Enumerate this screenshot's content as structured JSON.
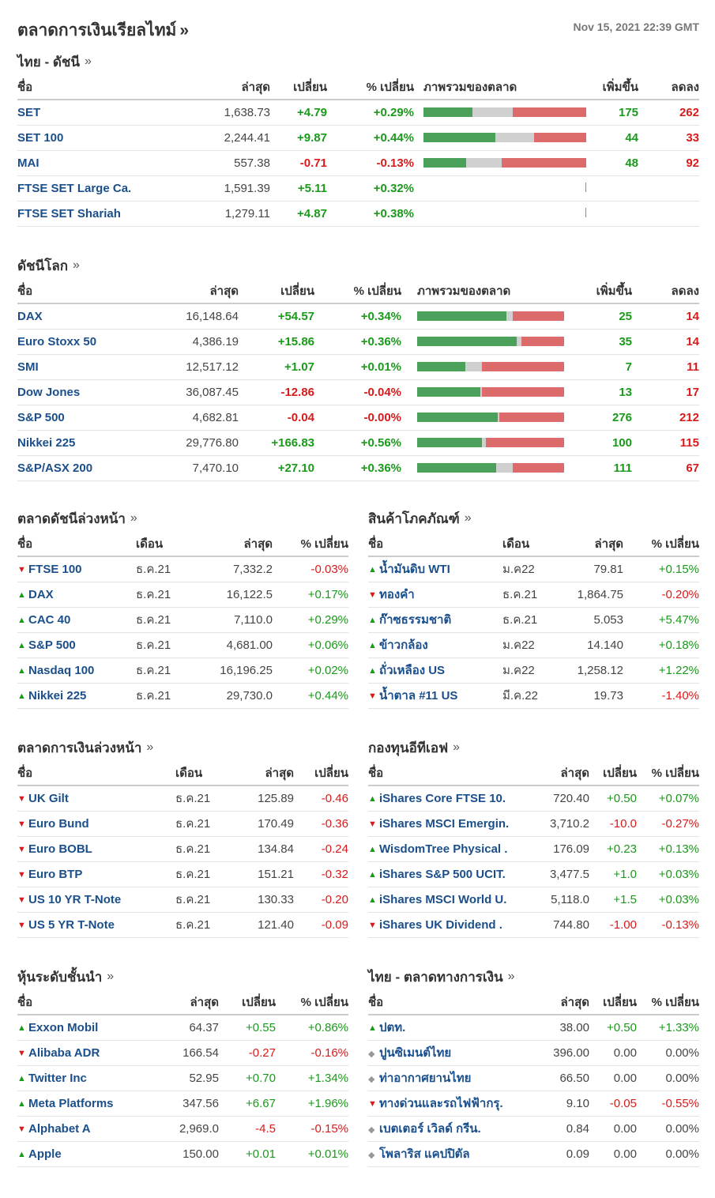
{
  "header": {
    "title": "ตลาดการเงินเรียลไทม์",
    "raquo": "»",
    "timestamp": "Nov 15, 2021 22:39 GMT"
  },
  "thai_indices": {
    "title": "ไทย - ดัชนี",
    "more": "»",
    "cols": [
      "ชื่อ",
      "ล่าสุด",
      "เปลี่ยน",
      "% เปลี่ยน",
      "ภาพรวมของตลาด",
      "เพิ่มขึ้น",
      "ลดลง"
    ],
    "rows": [
      {
        "name": "SET",
        "last": "1,638.73",
        "chg": "+4.79",
        "pct": "+0.29%",
        "up": "175",
        "down": "262",
        "dir": "pos",
        "mix": [
          0.3,
          0.25,
          0.45
        ]
      },
      {
        "name": "SET 100",
        "last": "2,244.41",
        "chg": "+9.87",
        "pct": "+0.44%",
        "up": "44",
        "down": "33",
        "dir": "pos",
        "mix": [
          0.44,
          0.24,
          0.32
        ]
      },
      {
        "name": "MAI",
        "last": "557.38",
        "chg": "-0.71",
        "pct": "-0.13%",
        "up": "48",
        "down": "92",
        "dir": "neg",
        "mix": [
          0.26,
          0.22,
          0.52
        ]
      },
      {
        "name": "FTSE SET Large Ca.",
        "last": "1,591.39",
        "chg": "+5.11",
        "pct": "+0.32%",
        "up": "",
        "down": "",
        "dir": "pos",
        "mix": null
      },
      {
        "name": "FTSE SET Shariah",
        "last": "1,279.11",
        "chg": "+4.87",
        "pct": "+0.38%",
        "up": "",
        "down": "",
        "dir": "pos",
        "mix": null
      }
    ]
  },
  "world_indices": {
    "title": "ดัชนีโลก",
    "more": "»",
    "cols": [
      "ชื่อ",
      "ล่าสุด",
      "เปลี่ยน",
      "% เปลี่ยน",
      "ภาพรวมของตลาด",
      "เพิ่มขึ้น",
      "ลดลง"
    ],
    "rows": [
      {
        "name": "DAX",
        "last": "16,148.64",
        "chg": "+54.57",
        "pct": "+0.34%",
        "up": "25",
        "down": "14",
        "dir": "pos",
        "mix": [
          0.61,
          0.04,
          0.35
        ]
      },
      {
        "name": "Euro Stoxx 50",
        "last": "4,386.19",
        "chg": "+15.86",
        "pct": "+0.36%",
        "up": "35",
        "down": "14",
        "dir": "pos",
        "mix": [
          0.68,
          0.03,
          0.29
        ]
      },
      {
        "name": "SMI",
        "last": "12,517.12",
        "chg": "+1.07",
        "pct": "+0.01%",
        "up": "7",
        "down": "11",
        "dir": "pos",
        "mix": [
          0.33,
          0.11,
          0.56
        ]
      },
      {
        "name": "Dow Jones",
        "last": "36,087.45",
        "chg": "-12.86",
        "pct": "-0.04%",
        "up": "13",
        "down": "17",
        "dir": "neg",
        "mix": [
          0.43,
          0.01,
          0.56
        ]
      },
      {
        "name": "S&P 500",
        "last": "4,682.81",
        "chg": "-0.04",
        "pct": "-0.00%",
        "up": "276",
        "down": "212",
        "dir": "neg",
        "mix": [
          0.55,
          0.01,
          0.44
        ]
      },
      {
        "name": "Nikkei 225",
        "last": "29,776.80",
        "chg": "+166.83",
        "pct": "+0.56%",
        "up": "100",
        "down": "115",
        "dir": "pos",
        "mix": [
          0.44,
          0.03,
          0.53
        ]
      },
      {
        "name": "S&P/ASX 200",
        "last": "7,470.10",
        "chg": "+27.10",
        "pct": "+0.36%",
        "up": "111",
        "down": "67",
        "dir": "pos",
        "mix": [
          0.54,
          0.11,
          0.35
        ]
      }
    ]
  },
  "index_futures": {
    "title": "ตลาดดัชนีล่วงหน้า",
    "more": "»",
    "cols": [
      "ชื่อ",
      "เดือน",
      "ล่าสุด",
      "% เปลี่ยน"
    ],
    "rows": [
      {
        "name": "FTSE 100",
        "month": "ธ.ค.21",
        "last": "7,332.2",
        "pct": "-0.03%",
        "dir": "neg"
      },
      {
        "name": "DAX",
        "month": "ธ.ค.21",
        "last": "16,122.5",
        "pct": "+0.17%",
        "dir": "pos"
      },
      {
        "name": "CAC 40",
        "month": "ธ.ค.21",
        "last": "7,110.0",
        "pct": "+0.29%",
        "dir": "pos"
      },
      {
        "name": "S&P 500",
        "month": "ธ.ค.21",
        "last": "4,681.00",
        "pct": "+0.06%",
        "dir": "pos"
      },
      {
        "name": "Nasdaq 100",
        "month": "ธ.ค.21",
        "last": "16,196.25",
        "pct": "+0.02%",
        "dir": "pos"
      },
      {
        "name": "Nikkei 225",
        "month": "ธ.ค.21",
        "last": "29,730.0",
        "pct": "+0.44%",
        "dir": "pos"
      }
    ]
  },
  "commodities": {
    "title": "สินค้าโภคภัณฑ์",
    "more": "»",
    "cols": [
      "ชื่อ",
      "เดือน",
      "ล่าสุด",
      "% เปลี่ยน"
    ],
    "rows": [
      {
        "name": "น้ำมันดิบ WTI",
        "month": "ม.ค22",
        "last": "79.81",
        "pct": "+0.15%",
        "dir": "pos"
      },
      {
        "name": "ทองคำ",
        "month": "ธ.ค.21",
        "last": "1,864.75",
        "pct": "-0.20%",
        "dir": "neg"
      },
      {
        "name": "ก๊าซธรรมชาติ",
        "month": "ธ.ค.21",
        "last": "5.053",
        "pct": "+5.47%",
        "dir": "pos"
      },
      {
        "name": "ข้าวกล้อง",
        "month": "ม.ค22",
        "last": "14.140",
        "pct": "+0.18%",
        "dir": "pos"
      },
      {
        "name": "ถั่วเหลือง US",
        "month": "ม.ค22",
        "last": "1,258.12",
        "pct": "+1.22%",
        "dir": "pos"
      },
      {
        "name": "น้ำตาล #11 US",
        "month": "มี.ค.22",
        "last": "19.73",
        "pct": "-1.40%",
        "dir": "neg"
      }
    ]
  },
  "bond_futures": {
    "title": "ตลาดการเงินล่วงหน้า",
    "more": "»",
    "cols": [
      "ชื่อ",
      "เดือน",
      "ล่าสุด",
      "เปลี่ยน"
    ],
    "rows": [
      {
        "name": "UK Gilt",
        "month": "ธ.ค.21",
        "last": "125.89",
        "chg": "-0.46",
        "dir": "neg"
      },
      {
        "name": "Euro Bund",
        "month": "ธ.ค.21",
        "last": "170.49",
        "chg": "-0.36",
        "dir": "neg"
      },
      {
        "name": "Euro BOBL",
        "month": "ธ.ค.21",
        "last": "134.84",
        "chg": "-0.24",
        "dir": "neg"
      },
      {
        "name": "Euro BTP",
        "month": "ธ.ค.21",
        "last": "151.21",
        "chg": "-0.32",
        "dir": "neg"
      },
      {
        "name": "US 10 YR T-Note",
        "month": "ธ.ค.21",
        "last": "130.33",
        "chg": "-0.20",
        "dir": "neg"
      },
      {
        "name": "US 5 YR T-Note",
        "month": "ธ.ค.21",
        "last": "121.40",
        "chg": "-0.09",
        "dir": "neg"
      }
    ]
  },
  "etfs": {
    "title": "กองทุนอีทีเอฟ",
    "more": "»",
    "cols": [
      "ชื่อ",
      "ล่าสุด",
      "เปลี่ยน",
      "% เปลี่ยน"
    ],
    "rows": [
      {
        "name": "iShares Core FTSE 10.",
        "last": "720.40",
        "chg": "+0.50",
        "pct": "+0.07%",
        "dir": "pos"
      },
      {
        "name": "iShares MSCI Emergin.",
        "last": "3,710.2",
        "chg": "-10.0",
        "pct": "-0.27%",
        "dir": "neg"
      },
      {
        "name": "WisdomTree Physical .",
        "last": "176.09",
        "chg": "+0.23",
        "pct": "+0.13%",
        "dir": "pos"
      },
      {
        "name": "iShares S&P 500 UCIT.",
        "last": "3,477.5",
        "chg": "+1.0",
        "pct": "+0.03%",
        "dir": "pos"
      },
      {
        "name": "iShares MSCI World U.",
        "last": "5,118.0",
        "chg": "+1.5",
        "pct": "+0.03%",
        "dir": "pos"
      },
      {
        "name": "iShares UK Dividend .",
        "last": "744.80",
        "chg": "-1.00",
        "pct": "-0.13%",
        "dir": "neg"
      }
    ]
  },
  "top_stocks": {
    "title": "หุ้นระดับชั้นนำ",
    "more": "»",
    "cols": [
      "ชื่อ",
      "ล่าสุด",
      "เปลี่ยน",
      "% เปลี่ยน"
    ],
    "rows": [
      {
        "name": "Exxon Mobil",
        "last": "64.37",
        "chg": "+0.55",
        "pct": "+0.86%",
        "dir": "pos"
      },
      {
        "name": "Alibaba ADR",
        "last": "166.54",
        "chg": "-0.27",
        "pct": "-0.16%",
        "dir": "neg"
      },
      {
        "name": "Twitter Inc",
        "last": "52.95",
        "chg": "+0.70",
        "pct": "+1.34%",
        "dir": "pos"
      },
      {
        "name": "Meta Platforms",
        "last": "347.56",
        "chg": "+6.67",
        "pct": "+1.96%",
        "dir": "pos"
      },
      {
        "name": "Alphabet A",
        "last": "2,969.0",
        "chg": "-4.5",
        "pct": "-0.15%",
        "dir": "neg"
      },
      {
        "name": "Apple",
        "last": "150.00",
        "chg": "+0.01",
        "pct": "+0.01%",
        "dir": "pos"
      }
    ]
  },
  "thai_stocks": {
    "title": "ไทย - ตลาดทางการเงิน",
    "more": "»",
    "cols": [
      "ชื่อ",
      "ล่าสุด",
      "เปลี่ยน",
      "% เปลี่ยน"
    ],
    "rows": [
      {
        "name": "ปตท.",
        "last": "38.00",
        "chg": "+0.50",
        "pct": "+1.33%",
        "dir": "pos"
      },
      {
        "name": "ปูนซิเมนต์ไทย",
        "last": "396.00",
        "chg": "0.00",
        "pct": "0.00%",
        "dir": "flat"
      },
      {
        "name": "ท่าอากาศยานไทย",
        "last": "66.50",
        "chg": "0.00",
        "pct": "0.00%",
        "dir": "flat"
      },
      {
        "name": "ทางด่วนและรถไฟฟ้ากรุ.",
        "last": "9.10",
        "chg": "-0.05",
        "pct": "-0.55%",
        "dir": "neg"
      },
      {
        "name": "เบตเตอร์ เวิลด์ กรีน.",
        "last": "0.84",
        "chg": "0.00",
        "pct": "0.00%",
        "dir": "flat"
      },
      {
        "name": "โพลาริส แคปปิตัล",
        "last": "0.09",
        "chg": "0.00",
        "pct": "0.00%",
        "dir": "flat"
      }
    ]
  }
}
